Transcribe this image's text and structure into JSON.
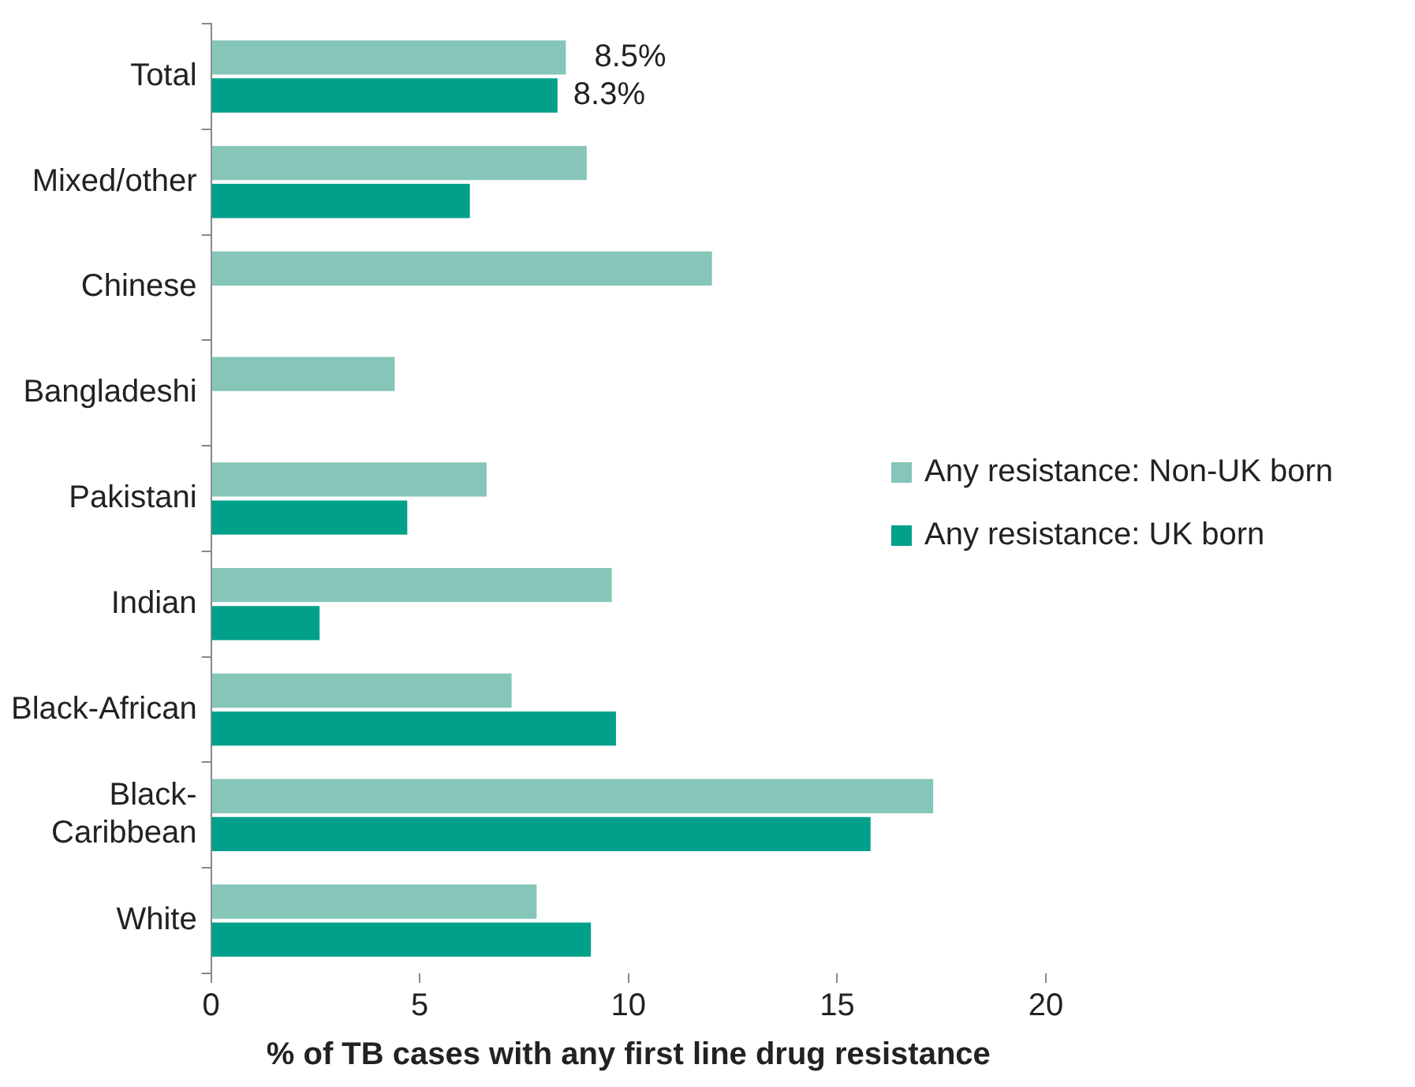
{
  "chart_data": {
    "type": "bar",
    "orientation": "horizontal",
    "xlabel": "% of TB cases with any first line drug resistance",
    "categories": [
      "Total",
      "Mixed/other",
      "Chinese",
      "Bangladeshi",
      "Pakistani",
      "Indian",
      "Black-African",
      "Black-\nCaribbean",
      "White"
    ],
    "series": [
      {
        "name": "Any resistance: Non-UK born",
        "color": "#85c6b8",
        "values": [
          8.5,
          9.0,
          12.0,
          4.4,
          6.6,
          9.6,
          7.2,
          17.3,
          7.8
        ],
        "value_labels": [
          "8.5%",
          null,
          null,
          null,
          null,
          null,
          null,
          null,
          null
        ]
      },
      {
        "name": "Any resistance: UK born",
        "color": "#00a08a",
        "values": [
          8.3,
          6.2,
          null,
          null,
          4.7,
          2.6,
          9.7,
          15.8,
          9.1
        ],
        "value_labels": [
          "8.3%",
          null,
          null,
          null,
          null,
          null,
          null,
          null,
          null
        ]
      }
    ],
    "xlim": [
      0,
      20
    ],
    "xticks": [
      0,
      5,
      10,
      15,
      20
    ],
    "grid": false,
    "legend": "right"
  }
}
